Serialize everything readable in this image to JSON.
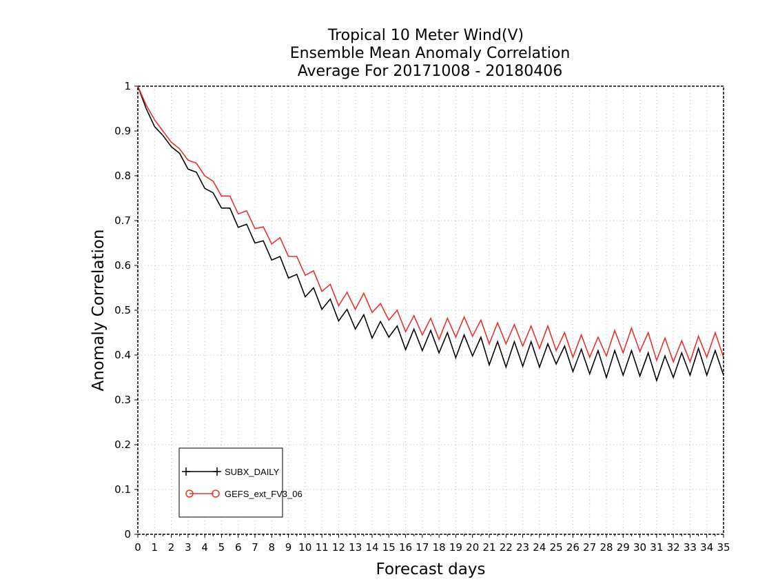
{
  "chart_data": {
    "type": "line",
    "title_lines": [
      "Tropical 10 Meter Wind(V)",
      "Ensemble Mean Anomaly Correlation",
      "Average For 20171008 - 20180406"
    ],
    "xlabel": "Forecast days",
    "ylabel": "Anomaly Correlation",
    "xlim": [
      0,
      35
    ],
    "ylim": [
      0,
      1
    ],
    "xticks": [
      "0",
      "1",
      "2",
      "3",
      "4",
      "5",
      "6",
      "7",
      "8",
      "9",
      "10",
      "11",
      "12",
      "13",
      "14",
      "15",
      "16",
      "17",
      "18",
      "19",
      "20",
      "21",
      "22",
      "23",
      "24",
      "25",
      "26",
      "27",
      "28",
      "29",
      "30",
      "31",
      "32",
      "33",
      "34",
      "35"
    ],
    "yticks": [
      "0",
      "0.1",
      "0.2",
      "0.3",
      "0.4",
      "0.5",
      "0.6",
      "0.7",
      "0.8",
      "0.9",
      "1"
    ],
    "grid": true,
    "legend_position": "bottom-left",
    "x_step": 0.5,
    "series": [
      {
        "name": "SUBX_DAILY",
        "color": "#000000",
        "marker": "plus",
        "values": [
          1.0,
          0.95,
          0.91,
          0.89,
          0.865,
          0.85,
          0.815,
          0.808,
          0.772,
          0.762,
          0.728,
          0.728,
          0.685,
          0.692,
          0.65,
          0.655,
          0.612,
          0.62,
          0.572,
          0.58,
          0.53,
          0.55,
          0.502,
          0.525,
          0.476,
          0.502,
          0.458,
          0.49,
          0.438,
          0.475,
          0.44,
          0.465,
          0.412,
          0.458,
          0.41,
          0.455,
          0.405,
          0.45,
          0.394,
          0.445,
          0.398,
          0.44,
          0.378,
          0.43,
          0.373,
          0.43,
          0.375,
          0.43,
          0.373,
          0.425,
          0.38,
          0.42,
          0.363,
          0.413,
          0.358,
          0.41,
          0.35,
          0.41,
          0.355,
          0.41,
          0.353,
          0.405,
          0.343,
          0.398,
          0.35,
          0.405,
          0.355,
          0.415,
          0.355,
          0.41,
          0.355
        ]
      },
      {
        "name": "GEFS_ext_FV3_06",
        "color": "#e8312f",
        "marker": "circle",
        "values": [
          1.0,
          0.958,
          0.925,
          0.9,
          0.875,
          0.86,
          0.835,
          0.828,
          0.8,
          0.788,
          0.755,
          0.755,
          0.715,
          0.722,
          0.682,
          0.686,
          0.648,
          0.662,
          0.62,
          0.62,
          0.578,
          0.588,
          0.542,
          0.558,
          0.51,
          0.54,
          0.502,
          0.538,
          0.495,
          0.515,
          0.478,
          0.5,
          0.452,
          0.488,
          0.445,
          0.482,
          0.435,
          0.482,
          0.44,
          0.485,
          0.442,
          0.478,
          0.425,
          0.472,
          0.425,
          0.468,
          0.42,
          0.465,
          0.415,
          0.465,
          0.41,
          0.45,
          0.395,
          0.445,
          0.395,
          0.44,
          0.398,
          0.455,
          0.405,
          0.46,
          0.408,
          0.45,
          0.388,
          0.438,
          0.385,
          0.432,
          0.385,
          0.442,
          0.395,
          0.45,
          0.395
        ]
      }
    ],
    "legend_labels": [
      "SUBX_DAILY",
      "GEFS_ext_FV3_06"
    ]
  }
}
